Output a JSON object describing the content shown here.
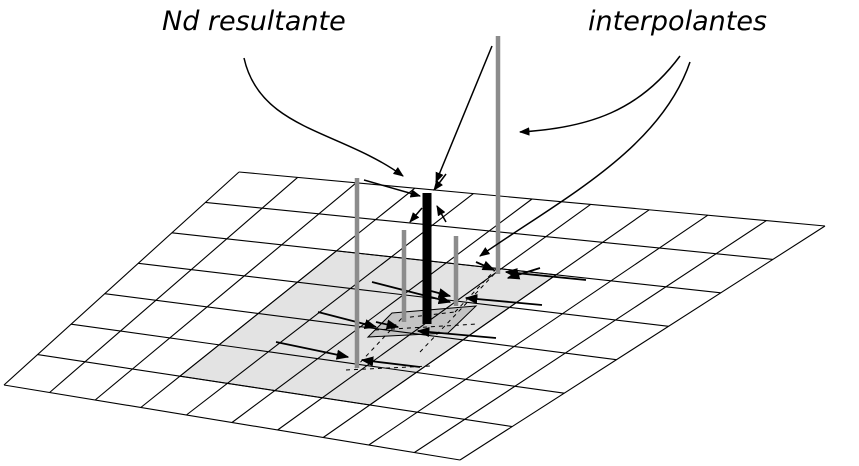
{
  "labels": {
    "resultant": "Nd resultante",
    "interpolants": "interpolantes"
  },
  "colors": {
    "grid_line": "#000000",
    "shaded_region": "#e3e3e3",
    "inner_cell": "#c4c4c4",
    "interpolant_bar": "#8c8c8c",
    "resultant_bar": "#000000",
    "arrow": "#000000"
  },
  "icons": [
    "arrow-icon"
  ]
}
